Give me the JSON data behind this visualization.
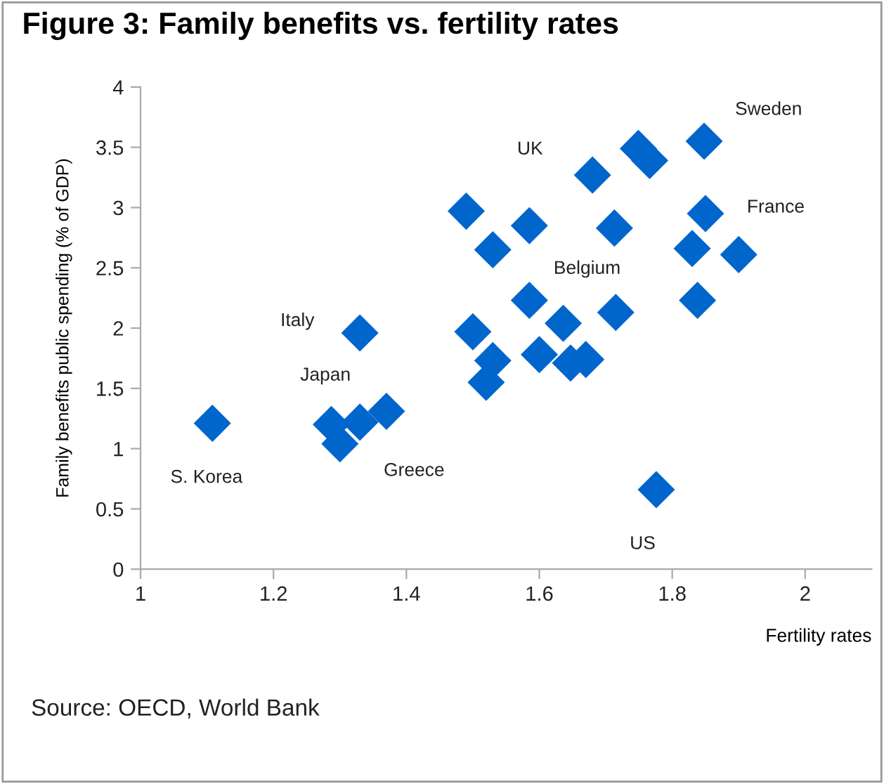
{
  "chart_data": {
    "type": "scatter",
    "title": "Figure 3: Family benefits vs. fertility rates",
    "xlabel": "Fertility rates",
    "ylabel": "Family benefits public spending (% of GDP)",
    "x": [
      1.108,
      1.287,
      1.3,
      1.33,
      1.37,
      1.33,
      1.49,
      1.53,
      1.5,
      1.53,
      1.52,
      1.585,
      1.585,
      1.6,
      1.636,
      1.647,
      1.67,
      1.68,
      1.713,
      1.715,
      1.749,
      1.766,
      1.776,
      1.848,
      1.85,
      1.83,
      1.838,
      1.9
    ],
    "series": [
      {
        "color": "#0066cc",
        "values": [
          1.21,
          1.2,
          1.04,
          1.22,
          1.31,
          1.96,
          2.97,
          2.65,
          1.97,
          1.73,
          1.55,
          2.85,
          2.23,
          1.78,
          2.04,
          1.71,
          1.74,
          3.27,
          2.83,
          2.13,
          3.49,
          3.39,
          0.66,
          3.55,
          2.95,
          2.66,
          2.23,
          2.61
        ]
      }
    ],
    "marker": "diamond",
    "xlim": [
      1,
      2.1
    ],
    "xticks": [
      1,
      1.2,
      1.4,
      1.6,
      1.8,
      2
    ],
    "ylim": [
      0,
      4
    ],
    "yticks": [
      0,
      0.5,
      1,
      1.5,
      2,
      2.5,
      3,
      3.5,
      4
    ],
    "grid": false,
    "legend": false,
    "annotations": [
      {
        "text": "Sweden",
        "x": 1.848,
        "y": 3.55
      },
      {
        "text": "UK",
        "x": 1.68,
        "y": 3.27
      },
      {
        "text": "France",
        "x": 1.85,
        "y": 2.95
      },
      {
        "text": "Belgium",
        "x": 1.713,
        "y": 2.83
      },
      {
        "text": "Italy",
        "x": 1.33,
        "y": 1.96
      },
      {
        "text": "Japan",
        "x": 1.287,
        "y": 1.2
      },
      {
        "text": "S. Korea",
        "x": 1.108,
        "y": 1.21
      },
      {
        "text": "Greece",
        "x": 1.3,
        "y": 1.04
      },
      {
        "text": "US",
        "x": 1.776,
        "y": 0.66
      },
      "Source: OECD, World Bank"
    ]
  }
}
